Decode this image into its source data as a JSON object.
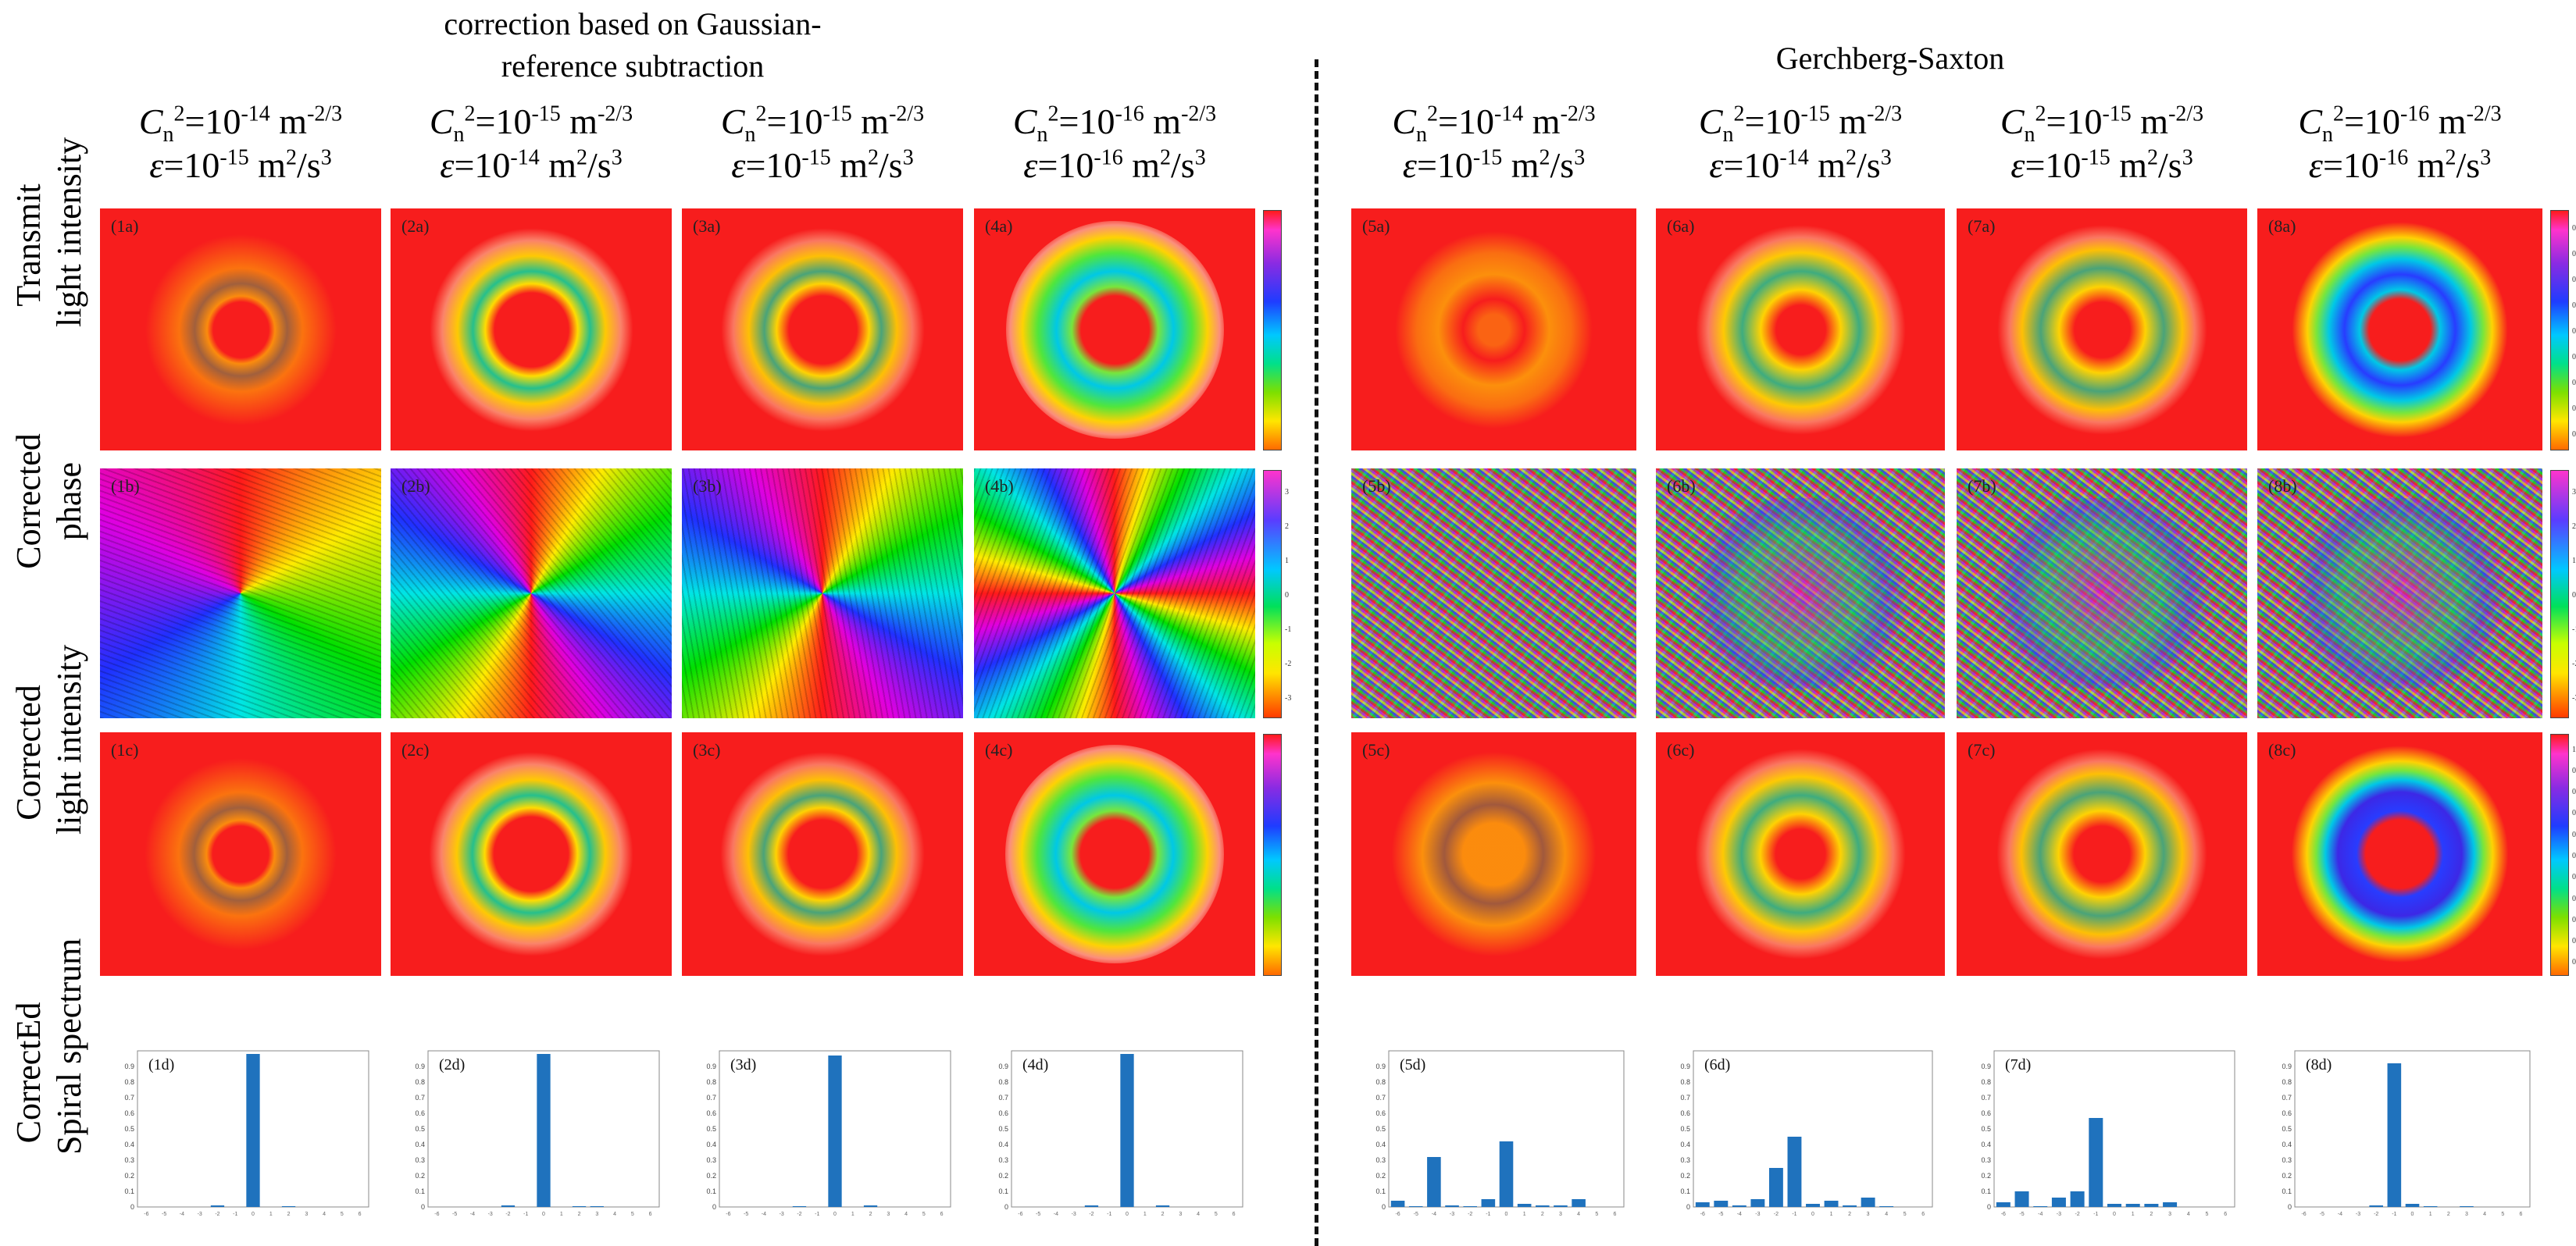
{
  "titles": {
    "left": "correction based on Gaussian-reference subtraction",
    "left_line1": "correction based on Gaussian-",
    "left_line2": "reference subtraction",
    "right": "Gerchberg-Saxton"
  },
  "columns": [
    {
      "cn_exp": "-14",
      "eps_exp": "-15"
    },
    {
      "cn_exp": "-15",
      "eps_exp": "-14"
    },
    {
      "cn_exp": "-15",
      "eps_exp": "-15"
    },
    {
      "cn_exp": "-16",
      "eps_exp": "-16"
    },
    {
      "cn_exp": "-14",
      "eps_exp": "-15"
    },
    {
      "cn_exp": "-15",
      "eps_exp": "-14"
    },
    {
      "cn_exp": "-15",
      "eps_exp": "-15"
    },
    {
      "cn_exp": "-16",
      "eps_exp": "-16"
    }
  ],
  "formula": {
    "cn_symbol": "C",
    "cn_sub": "n",
    "cn_sup": "2",
    "eq_ten": "=10",
    "cn_unit": "m",
    "cn_unit_exp": "-2/3",
    "eps_symbol": "ε",
    "eps_unit": "m",
    "eps_unit_sup": "2",
    "eps_unit_tail": "/s",
    "eps_unit_tail_sup": "3"
  },
  "row_labels": [
    {
      "line1": "Transmit",
      "line2": "light intensity"
    },
    {
      "line1": "Corrected",
      "line2": "phase"
    },
    {
      "line1": "Corrected",
      "line2": "light intensity"
    },
    {
      "line1": "CorrectEd",
      "line2": "Spiral spectrum"
    }
  ],
  "panel_tags": {
    "a": [
      "(1a)",
      "(2a)",
      "(3a)",
      "(4a)",
      "(5a)",
      "(6a)",
      "(7a)",
      "(8a)"
    ],
    "b": [
      "(1b)",
      "(2b)",
      "(3b)",
      "(4b)",
      "(5b)",
      "(6b)",
      "(7b)",
      "(8b)"
    ],
    "c": [
      "(1c)",
      "(2c)",
      "(3c)",
      "(4c)",
      "(5c)",
      "(6c)",
      "(7c)",
      "(8c)"
    ],
    "d": [
      "(1d)",
      "(2d)",
      "(3d)",
      "(4d)",
      "(5d)",
      "(6d)",
      "(7d)",
      "(8d)"
    ]
  },
  "colorbar_ticks_intensity": [
    "0.9",
    "0.8",
    "0.7",
    "0.6",
    "0.5",
    "0.4",
    "0.3",
    "0.2",
    "0.1"
  ],
  "colorbar_ticks_intensity_c8": [
    "1",
    "0.9",
    "0.8",
    "0.7",
    "0.6",
    "0.5",
    "0.4",
    "0.3",
    "0.2",
    "0.1",
    "0"
  ],
  "colorbar_ticks_phase": [
    "3",
    "2",
    "1",
    "0",
    "-1",
    "-2",
    "-3"
  ],
  "colors": {
    "background_red": "#f71d1d",
    "bar_blue": "#1f72bd"
  },
  "chart_data": [
    {
      "type": "bar",
      "title": "(1d)",
      "categories": [
        "-6",
        "-5",
        "-4",
        "-3",
        "-2",
        "-1",
        "0",
        "1",
        "2",
        "3",
        "4",
        "5",
        "6"
      ],
      "values": [
        0,
        0,
        0,
        0,
        0.01,
        0,
        0.98,
        0,
        0.005,
        0,
        0,
        0,
        0
      ],
      "ylim": [
        0,
        1
      ],
      "yticks": [
        "0.9",
        "0.8",
        "0.7",
        "0.6",
        "0.5",
        "0.4",
        "0.3",
        "0.2",
        "0.1",
        "0"
      ]
    },
    {
      "type": "bar",
      "title": "(2d)",
      "categories": [
        "-6",
        "-5",
        "-4",
        "-3",
        "-2",
        "-1",
        "0",
        "1",
        "2",
        "3",
        "4",
        "5",
        "6"
      ],
      "values": [
        0,
        0,
        0,
        0,
        0.01,
        0,
        0.98,
        0,
        0.005,
        0.005,
        0,
        0,
        0
      ],
      "ylim": [
        0,
        1
      ],
      "yticks": [
        "0.9",
        "0.8",
        "0.7",
        "0.6",
        "0.5",
        "0.4",
        "0.3",
        "0.2",
        "0.1",
        "0"
      ]
    },
    {
      "type": "bar",
      "title": "(3d)",
      "categories": [
        "-6",
        "-5",
        "-4",
        "-3",
        "-2",
        "-1",
        "0",
        "1",
        "2",
        "3",
        "4",
        "5",
        "6"
      ],
      "values": [
        0,
        0,
        0,
        0,
        0.005,
        0,
        0.97,
        0,
        0.01,
        0,
        0,
        0,
        0
      ],
      "ylim": [
        0,
        1
      ],
      "yticks": [
        "0.9",
        "0.8",
        "0.7",
        "0.6",
        "0.5",
        "0.4",
        "0.3",
        "0.2",
        "0.1",
        "0"
      ]
    },
    {
      "type": "bar",
      "title": "(4d)",
      "categories": [
        "-6",
        "-5",
        "-4",
        "-3",
        "-2",
        "-1",
        "0",
        "1",
        "2",
        "3",
        "4",
        "5",
        "6"
      ],
      "values": [
        0,
        0,
        0,
        0,
        0.01,
        0,
        0.98,
        0,
        0.01,
        0,
        0,
        0,
        0
      ],
      "ylim": [
        0,
        1
      ],
      "yticks": [
        "0.9",
        "0.8",
        "0.7",
        "0.6",
        "0.5",
        "0.4",
        "0.3",
        "0.2",
        "0.1",
        "0"
      ]
    },
    {
      "type": "bar",
      "title": "(5d)",
      "categories": [
        "-6",
        "-5",
        "-4",
        "-3",
        "-2",
        "-1",
        "0",
        "1",
        "2",
        "3",
        "4",
        "5",
        "6"
      ],
      "values": [
        0.04,
        0.005,
        0.32,
        0.01,
        0.005,
        0.05,
        0.42,
        0.02,
        0.01,
        0.01,
        0.05,
        0,
        0
      ],
      "ylim": [
        0,
        1
      ],
      "yticks": [
        "0.9",
        "0.8",
        "0.7",
        "0.6",
        "0.5",
        "0.4",
        "0.3",
        "0.2",
        "0.1",
        "0"
      ]
    },
    {
      "type": "bar",
      "title": "(6d)",
      "categories": [
        "-6",
        "-5",
        "-4",
        "-3",
        "-2",
        "-1",
        "0",
        "1",
        "2",
        "3",
        "4",
        "5",
        "6"
      ],
      "values": [
        0.03,
        0.04,
        0.01,
        0.05,
        0.25,
        0.45,
        0.02,
        0.04,
        0.01,
        0.06,
        0.005,
        0,
        0
      ],
      "ylim": [
        0,
        1
      ],
      "yticks": [
        "0.9",
        "0.8",
        "0.7",
        "0.6",
        "0.5",
        "0.4",
        "0.3",
        "0.2",
        "0.1",
        "0"
      ]
    },
    {
      "type": "bar",
      "title": "(7d)",
      "categories": [
        "-6",
        "-5",
        "-4",
        "-3",
        "-2",
        "-1",
        "0",
        "1",
        "2",
        "3",
        "4",
        "5",
        "6"
      ],
      "values": [
        0.03,
        0.1,
        0.005,
        0.06,
        0.1,
        0.57,
        0.02,
        0.02,
        0.02,
        0.03,
        0,
        0,
        0
      ],
      "ylim": [
        0,
        1
      ],
      "yticks": [
        "0.9",
        "0.8",
        "0.7",
        "0.6",
        "0.5",
        "0.4",
        "0.3",
        "0.2",
        "0.1",
        "0"
      ]
    },
    {
      "type": "bar",
      "title": "(8d)",
      "categories": [
        "-6",
        "-5",
        "-4",
        "-3",
        "-2",
        "-1",
        "0",
        "1",
        "2",
        "3",
        "4",
        "5",
        "6"
      ],
      "values": [
        0,
        0,
        0,
        0,
        0.01,
        0.92,
        0.02,
        0.005,
        0,
        0.005,
        0,
        0,
        0
      ],
      "ylim": [
        0,
        1
      ],
      "yticks": [
        "0.9",
        "0.8",
        "0.7",
        "0.6",
        "0.5",
        "0.4",
        "0.3",
        "0.2",
        "0.1",
        "0"
      ]
    }
  ]
}
